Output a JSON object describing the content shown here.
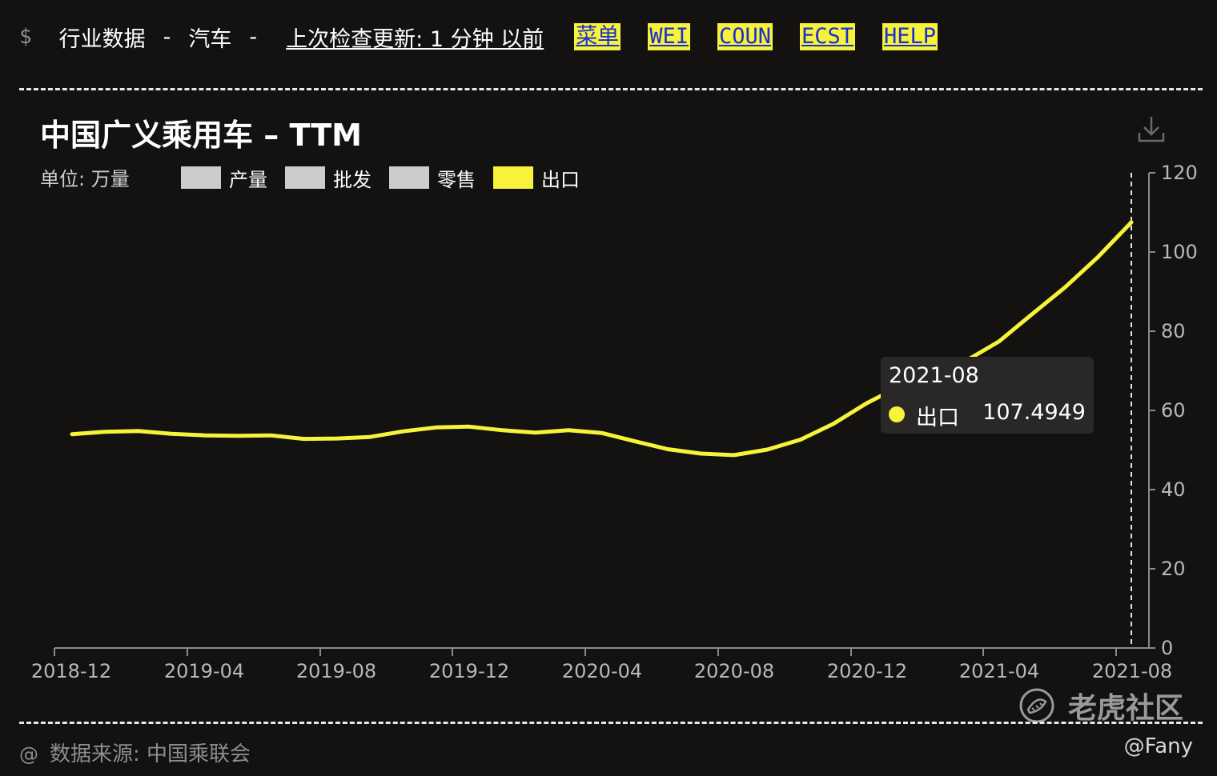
{
  "topbar": {
    "prompt_symbol": "$",
    "section": "行业数据",
    "separator": "-",
    "category": "汽车",
    "last_update": "上次检查更新: 1 分钟 以前",
    "links": [
      "菜单",
      "WEI",
      "COUN",
      "ECST",
      "HELP"
    ]
  },
  "icons": {
    "download": "download-icon",
    "watermark_logo": "tiger-logo-icon"
  },
  "chart_header": {
    "title": "中国广义乘用车 – TTM",
    "unit": "单位: 万量"
  },
  "legend": [
    {
      "label": "产量",
      "color": "#cccccc",
      "active": false
    },
    {
      "label": "批发",
      "color": "#cccccc",
      "active": false
    },
    {
      "label": "零售",
      "color": "#cccccc",
      "active": false
    },
    {
      "label": "出口",
      "color": "#f7f23a",
      "active": true
    }
  ],
  "tooltip": {
    "date": "2021-08",
    "series": "出口",
    "value": "107.4949",
    "dot_color": "#f7f23a"
  },
  "chart_data": {
    "type": "line",
    "title": "中国广义乘用车 – TTM",
    "unit": "单位: 万量",
    "x": [
      "2018-12",
      "2019-01",
      "2019-02",
      "2019-03",
      "2019-04",
      "2019-05",
      "2019-06",
      "2019-07",
      "2019-08",
      "2019-09",
      "2019-10",
      "2019-11",
      "2019-12",
      "2020-01",
      "2020-02",
      "2020-03",
      "2020-04",
      "2020-05",
      "2020-06",
      "2020-07",
      "2020-08",
      "2020-09",
      "2020-10",
      "2020-11",
      "2020-12",
      "2021-01",
      "2021-02",
      "2021-03",
      "2021-04",
      "2021-05",
      "2021-06",
      "2021-07",
      "2021-08"
    ],
    "x_tick_labels": [
      "2018-12",
      "2019-04",
      "2019-08",
      "2019-12",
      "2020-04",
      "2020-08",
      "2020-12",
      "2021-04",
      "2021-08"
    ],
    "series": [
      {
        "name": "出口",
        "color": "#f7f23a",
        "values": [
          54.0,
          54.6,
          54.8,
          54.1,
          53.7,
          53.6,
          53.7,
          52.8,
          52.9,
          53.3,
          54.7,
          55.7,
          55.9,
          55.0,
          54.4,
          55.0,
          54.3,
          52.2,
          50.2,
          49.1,
          48.7,
          50.1,
          52.6,
          56.6,
          61.8,
          66.1,
          69.5,
          72.5,
          77.4,
          84.3,
          91.1,
          98.8,
          107.4949
        ]
      }
    ],
    "ylim": [
      0,
      120
    ],
    "y_ticks": [
      0,
      20,
      40,
      60,
      80,
      100,
      120
    ],
    "y_axis_side": "right",
    "grid": false,
    "legend_position": "top-left",
    "cursor_at": "2021-08"
  },
  "footer": {
    "at_symbol": "@",
    "source": "数据来源: 中国乘联会",
    "watermark": "老虎社区",
    "author": "@Fany"
  }
}
